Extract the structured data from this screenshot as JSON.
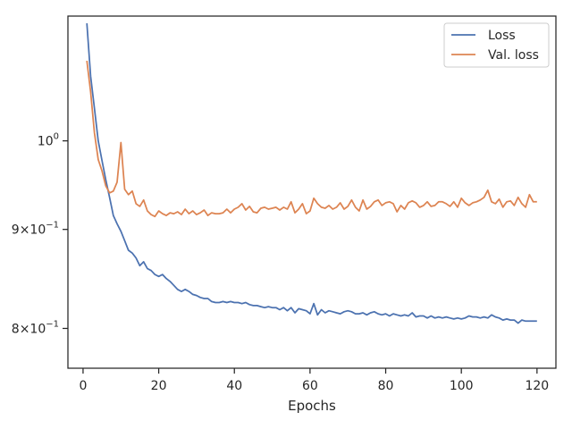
{
  "chart_data": {
    "type": "line",
    "title": "",
    "xlabel": "Epochs",
    "ylabel": "",
    "xlim": [
      -4,
      125
    ],
    "ylim": [
      0.763,
      1.16
    ],
    "yscale": "log",
    "grid": false,
    "legend_position": "top-right",
    "x_ticks": [
      0,
      20,
      40,
      60,
      80,
      100,
      120
    ],
    "x_tick_labels": [
      "0",
      "20",
      "40",
      "60",
      "80",
      "100",
      "120"
    ],
    "y_ticks": [
      0.8,
      0.9,
      1.0
    ],
    "y_tick_labels": [
      {
        "base": "8×10",
        "exp": "−1"
      },
      {
        "base": "9×10",
        "exp": "−1"
      },
      {
        "base": "10",
        "exp": "0"
      }
    ],
    "series": [
      {
        "name": "Loss",
        "color": "#4c72b0",
        "points": [
          [
            1,
            1.15
          ],
          [
            2,
            1.08
          ],
          [
            3,
            1.04
          ],
          [
            4,
            1.0
          ],
          [
            5,
            0.977
          ],
          [
            6,
            0.955
          ],
          [
            7,
            0.935
          ],
          [
            8,
            0.915
          ],
          [
            9,
            0.906
          ],
          [
            10,
            0.898
          ],
          [
            11,
            0.888
          ],
          [
            12,
            0.878
          ],
          [
            13,
            0.875
          ],
          [
            14,
            0.87
          ],
          [
            15,
            0.862
          ],
          [
            16,
            0.866
          ],
          [
            17,
            0.859
          ],
          [
            18,
            0.857
          ],
          [
            19,
            0.853
          ],
          [
            20,
            0.851
          ],
          [
            21,
            0.853
          ],
          [
            22,
            0.849
          ],
          [
            23,
            0.846
          ],
          [
            24,
            0.842
          ],
          [
            25,
            0.838
          ],
          [
            26,
            0.836
          ],
          [
            27,
            0.838
          ],
          [
            28,
            0.836
          ],
          [
            29,
            0.833
          ],
          [
            30,
            0.832
          ],
          [
            31,
            0.83
          ],
          [
            32,
            0.829
          ],
          [
            33,
            0.829
          ],
          [
            34,
            0.826
          ],
          [
            35,
            0.825
          ],
          [
            36,
            0.825
          ],
          [
            37,
            0.826
          ],
          [
            38,
            0.825
          ],
          [
            39,
            0.826
          ],
          [
            40,
            0.825
          ],
          [
            41,
            0.825
          ],
          [
            42,
            0.824
          ],
          [
            43,
            0.825
          ],
          [
            44,
            0.823
          ],
          [
            45,
            0.822
          ],
          [
            46,
            0.822
          ],
          [
            47,
            0.821
          ],
          [
            48,
            0.82
          ],
          [
            49,
            0.821
          ],
          [
            50,
            0.82
          ],
          [
            51,
            0.82
          ],
          [
            52,
            0.818
          ],
          [
            53,
            0.82
          ],
          [
            54,
            0.817
          ],
          [
            55,
            0.82
          ],
          [
            56,
            0.815
          ],
          [
            57,
            0.819
          ],
          [
            58,
            0.818
          ],
          [
            59,
            0.817
          ],
          [
            60,
            0.814
          ],
          [
            61,
            0.824
          ],
          [
            62,
            0.813
          ],
          [
            63,
            0.818
          ],
          [
            64,
            0.815
          ],
          [
            65,
            0.817
          ],
          [
            66,
            0.816
          ],
          [
            67,
            0.815
          ],
          [
            68,
            0.814
          ],
          [
            69,
            0.816
          ],
          [
            70,
            0.817
          ],
          [
            71,
            0.816
          ],
          [
            72,
            0.814
          ],
          [
            73,
            0.814
          ],
          [
            74,
            0.815
          ],
          [
            75,
            0.813
          ],
          [
            76,
            0.815
          ],
          [
            77,
            0.816
          ],
          [
            78,
            0.814
          ],
          [
            79,
            0.813
          ],
          [
            80,
            0.814
          ],
          [
            81,
            0.812
          ],
          [
            82,
            0.814
          ],
          [
            83,
            0.813
          ],
          [
            84,
            0.812
          ],
          [
            85,
            0.813
          ],
          [
            86,
            0.812
          ],
          [
            87,
            0.815
          ],
          [
            88,
            0.811
          ],
          [
            89,
            0.812
          ],
          [
            90,
            0.812
          ],
          [
            91,
            0.81
          ],
          [
            92,
            0.812
          ],
          [
            93,
            0.81
          ],
          [
            94,
            0.811
          ],
          [
            95,
            0.81
          ],
          [
            96,
            0.811
          ],
          [
            97,
            0.81
          ],
          [
            98,
            0.809
          ],
          [
            99,
            0.81
          ],
          [
            100,
            0.809
          ],
          [
            101,
            0.81
          ],
          [
            102,
            0.812
          ],
          [
            103,
            0.811
          ],
          [
            104,
            0.811
          ],
          [
            105,
            0.81
          ],
          [
            106,
            0.811
          ],
          [
            107,
            0.81
          ],
          [
            108,
            0.813
          ],
          [
            109,
            0.811
          ],
          [
            110,
            0.81
          ],
          [
            111,
            0.808
          ],
          [
            112,
            0.809
          ],
          [
            113,
            0.808
          ],
          [
            114,
            0.808
          ],
          [
            115,
            0.805
          ],
          [
            116,
            0.808
          ],
          [
            117,
            0.807
          ],
          [
            118,
            0.807
          ],
          [
            119,
            0.807
          ],
          [
            120,
            0.807
          ]
        ]
      },
      {
        "name": "Val. loss",
        "color": "#dd8452",
        "points": [
          [
            1,
            1.1
          ],
          [
            2,
            1.06
          ],
          [
            3,
            1.01
          ],
          [
            4,
            0.978
          ],
          [
            5,
            0.965
          ],
          [
            6,
            0.948
          ],
          [
            7,
            0.94
          ],
          [
            8,
            0.942
          ],
          [
            9,
            0.952
          ],
          [
            10,
            0.998
          ],
          [
            11,
            0.944
          ],
          [
            12,
            0.938
          ],
          [
            13,
            0.942
          ],
          [
            14,
            0.928
          ],
          [
            15,
            0.925
          ],
          [
            16,
            0.932
          ],
          [
            17,
            0.92
          ],
          [
            18,
            0.916
          ],
          [
            19,
            0.914
          ],
          [
            20,
            0.92
          ],
          [
            21,
            0.917
          ],
          [
            22,
            0.915
          ],
          [
            23,
            0.918
          ],
          [
            24,
            0.917
          ],
          [
            25,
            0.919
          ],
          [
            26,
            0.916
          ],
          [
            27,
            0.922
          ],
          [
            28,
            0.917
          ],
          [
            29,
            0.92
          ],
          [
            30,
            0.916
          ],
          [
            31,
            0.918
          ],
          [
            32,
            0.921
          ],
          [
            33,
            0.915
          ],
          [
            34,
            0.918
          ],
          [
            35,
            0.917
          ],
          [
            36,
            0.917
          ],
          [
            37,
            0.918
          ],
          [
            38,
            0.922
          ],
          [
            39,
            0.918
          ],
          [
            40,
            0.922
          ],
          [
            41,
            0.924
          ],
          [
            42,
            0.928
          ],
          [
            43,
            0.921
          ],
          [
            44,
            0.925
          ],
          [
            45,
            0.919
          ],
          [
            46,
            0.918
          ],
          [
            47,
            0.923
          ],
          [
            48,
            0.924
          ],
          [
            49,
            0.922
          ],
          [
            50,
            0.923
          ],
          [
            51,
            0.924
          ],
          [
            52,
            0.921
          ],
          [
            53,
            0.924
          ],
          [
            54,
            0.922
          ],
          [
            55,
            0.93
          ],
          [
            56,
            0.918
          ],
          [
            57,
            0.922
          ],
          [
            58,
            0.928
          ],
          [
            59,
            0.917
          ],
          [
            60,
            0.92
          ],
          [
            61,
            0.934
          ],
          [
            62,
            0.928
          ],
          [
            63,
            0.924
          ],
          [
            64,
            0.923
          ],
          [
            65,
            0.926
          ],
          [
            66,
            0.922
          ],
          [
            67,
            0.924
          ],
          [
            68,
            0.929
          ],
          [
            69,
            0.922
          ],
          [
            70,
            0.925
          ],
          [
            71,
            0.932
          ],
          [
            72,
            0.924
          ],
          [
            73,
            0.92
          ],
          [
            74,
            0.932
          ],
          [
            75,
            0.922
          ],
          [
            76,
            0.925
          ],
          [
            77,
            0.93
          ],
          [
            78,
            0.932
          ],
          [
            79,
            0.926
          ],
          [
            80,
            0.929
          ],
          [
            81,
            0.93
          ],
          [
            82,
            0.928
          ],
          [
            83,
            0.919
          ],
          [
            84,
            0.926
          ],
          [
            85,
            0.922
          ],
          [
            86,
            0.929
          ],
          [
            87,
            0.931
          ],
          [
            88,
            0.929
          ],
          [
            89,
            0.924
          ],
          [
            90,
            0.926
          ],
          [
            91,
            0.93
          ],
          [
            92,
            0.925
          ],
          [
            93,
            0.926
          ],
          [
            94,
            0.93
          ],
          [
            95,
            0.93
          ],
          [
            96,
            0.928
          ],
          [
            97,
            0.925
          ],
          [
            98,
            0.93
          ],
          [
            99,
            0.924
          ],
          [
            100,
            0.934
          ],
          [
            101,
            0.929
          ],
          [
            102,
            0.926
          ],
          [
            103,
            0.929
          ],
          [
            104,
            0.93
          ],
          [
            105,
            0.932
          ],
          [
            106,
            0.935
          ],
          [
            107,
            0.943
          ],
          [
            108,
            0.93
          ],
          [
            109,
            0.928
          ],
          [
            110,
            0.933
          ],
          [
            111,
            0.924
          ],
          [
            112,
            0.93
          ],
          [
            113,
            0.931
          ],
          [
            114,
            0.926
          ],
          [
            115,
            0.935
          ],
          [
            116,
            0.928
          ],
          [
            117,
            0.924
          ],
          [
            118,
            0.938
          ],
          [
            119,
            0.93
          ],
          [
            120,
            0.93
          ]
        ]
      }
    ]
  }
}
